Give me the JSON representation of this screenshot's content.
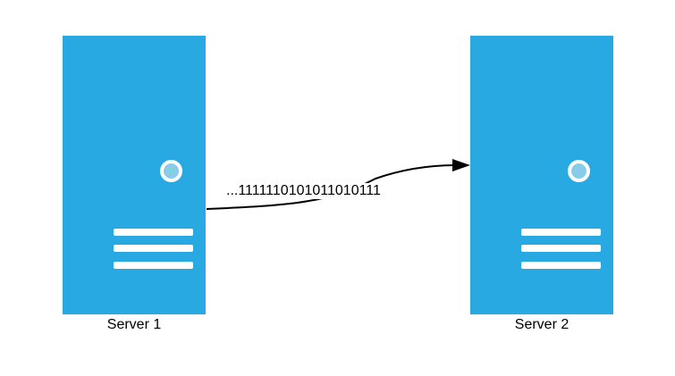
{
  "servers": [
    {
      "label": "Server 1"
    },
    {
      "label": "Server 2"
    }
  ],
  "connection": {
    "label": "...1111110101011010111"
  },
  "colors": {
    "server_body": "#29a9e1",
    "power_led": "#87cce8",
    "detail": "#ffffff",
    "line": "#000000"
  },
  "icons": {
    "server": "server-icon",
    "arrow": "arrow-head-icon"
  }
}
